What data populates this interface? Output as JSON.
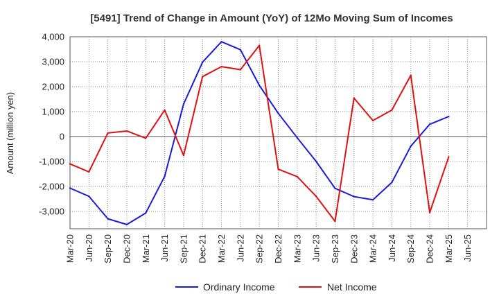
{
  "chart_data": {
    "type": "line",
    "title": "[5491]  Trend of Change in Amount (YoY) of 12Mo Moving Sum of Incomes",
    "ylabel": "Amount (million yen)",
    "xlabel": "",
    "ylim": [
      -3700,
      4000
    ],
    "yticks": [
      4000,
      3000,
      2000,
      1000,
      0,
      -1000,
      -2000,
      -3000
    ],
    "ytick_labels": [
      "4,000",
      "3,000",
      "2,000",
      "1,000",
      "0",
      "-1,000",
      "-2,000",
      "-3,000"
    ],
    "x": [
      "Mar-20",
      "Jun-20",
      "Sep-20",
      "Dec-20",
      "Mar-21",
      "Jun-21",
      "Sep-21",
      "Dec-21",
      "Mar-22",
      "Jun-22",
      "Sep-22",
      "Dec-22",
      "Mar-23",
      "Jun-23",
      "Sep-23",
      "Dec-23",
      "Mar-24",
      "Jun-24",
      "Sep-24",
      "Dec-24",
      "Mar-25",
      "Jun-25"
    ],
    "grid": true,
    "legend_position": "bottom",
    "series": [
      {
        "name": "Ordinary Income",
        "color": "#1a1adb",
        "values": [
          -2070,
          -2400,
          -3300,
          -3530,
          -3070,
          -1600,
          1300,
          2980,
          3800,
          3480,
          2050,
          930,
          -50,
          -1000,
          -2080,
          -2410,
          -2540,
          -1840,
          -390,
          490,
          800,
          null
        ]
      },
      {
        "name": "Net Income",
        "color": "#e01010",
        "values": [
          -1100,
          -1420,
          140,
          220,
          -70,
          1060,
          -760,
          2400,
          2800,
          2680,
          3650,
          -1310,
          -1610,
          -2400,
          -3400,
          1540,
          640,
          1060,
          2450,
          -3050,
          -820,
          null
        ]
      }
    ]
  }
}
